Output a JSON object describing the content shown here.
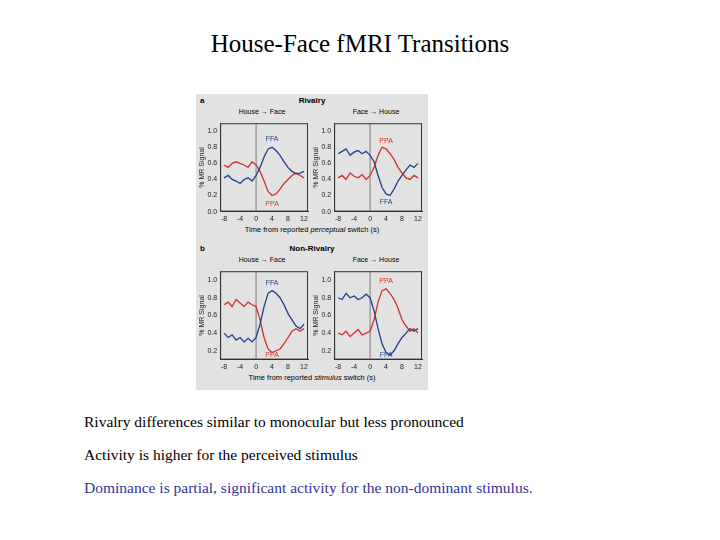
{
  "slide": {
    "title": "House-Face fMRI Transitions",
    "bullets": [
      {
        "text": "Rivalry differences similar to monocular but less pronounced",
        "color": "#000000"
      },
      {
        "text": "Activity is higher for the perceived stimulus",
        "color": "#000000"
      },
      {
        "text": "Dominance is partial, significant activity for the non-dominant stimulus.",
        "color": "#333399"
      }
    ]
  },
  "figure": {
    "panels": [
      {
        "letter": "a",
        "title": "Rivalry",
        "x_label": "Time from reported perceptual switch (s)",
        "emphasis": "perceptual"
      },
      {
        "letter": "b",
        "title": "Non-Rivalry",
        "x_label": "Time from reported stimulus switch (s)",
        "emphasis": "stimulus"
      }
    ]
  },
  "chart_data": [
    {
      "type": "line",
      "title": "House → Face",
      "y_label": "% MR Signal",
      "x": [
        -8,
        -7,
        -6,
        -5,
        -4,
        -3,
        -2,
        -1,
        0,
        1,
        2,
        3,
        4,
        5,
        6,
        7,
        8,
        9,
        10,
        11,
        12
      ],
      "series": [
        {
          "name": "FFA",
          "color": "#1f3f8f",
          "values": [
            0.42,
            0.45,
            0.4,
            0.38,
            0.35,
            0.4,
            0.42,
            0.38,
            0.45,
            0.55,
            0.68,
            0.78,
            0.8,
            0.76,
            0.7,
            0.62,
            0.55,
            0.5,
            0.47,
            0.48,
            0.5
          ]
        },
        {
          "name": "PPA",
          "color": "#d0312d",
          "values": [
            0.58,
            0.55,
            0.6,
            0.62,
            0.6,
            0.58,
            0.55,
            0.62,
            0.58,
            0.5,
            0.38,
            0.25,
            0.2,
            0.22,
            0.28,
            0.35,
            0.4,
            0.45,
            0.48,
            0.45,
            0.42
          ]
        }
      ],
      "xlim": [
        -9,
        13
      ],
      "xticks": [
        -8,
        -4,
        0,
        4,
        8,
        12
      ],
      "ylim": [
        0,
        1.1
      ],
      "yticks": [
        {
          "value": 0,
          "label": "0.0"
        },
        0.2,
        0.4,
        0.6,
        0.8,
        {
          "value": 1,
          "label": "1.0"
        }
      ],
      "switch_time": 0,
      "grid": false
    },
    {
      "type": "line",
      "title": "Face → House",
      "y_label": "% MR Signal",
      "x": [
        -8,
        -7,
        -6,
        -5,
        -4,
        -3,
        -2,
        -1,
        0,
        1,
        2,
        3,
        4,
        5,
        6,
        7,
        8,
        9,
        10,
        11,
        12
      ],
      "series": [
        {
          "name": "PPA",
          "color": "#d0312d",
          "values": [
            0.42,
            0.45,
            0.4,
            0.48,
            0.44,
            0.42,
            0.46,
            0.4,
            0.45,
            0.55,
            0.7,
            0.8,
            0.78,
            0.72,
            0.65,
            0.55,
            0.48,
            0.42,
            0.4,
            0.45,
            0.42
          ]
        },
        {
          "name": "FFA",
          "color": "#1f3f8f",
          "values": [
            0.72,
            0.75,
            0.78,
            0.7,
            0.74,
            0.76,
            0.72,
            0.75,
            0.7,
            0.62,
            0.45,
            0.3,
            0.22,
            0.2,
            0.28,
            0.38,
            0.45,
            0.52,
            0.58,
            0.55,
            0.6
          ]
        }
      ],
      "xlim": [
        -9,
        13
      ],
      "xticks": [
        -8,
        -4,
        0,
        4,
        8,
        12
      ],
      "ylim": [
        0,
        1.1
      ],
      "yticks": [
        {
          "value": 0,
          "label": "0.0"
        },
        0.2,
        0.4,
        0.6,
        0.8,
        {
          "value": 1,
          "label": "1.0"
        }
      ],
      "switch_time": 0,
      "grid": false
    },
    {
      "type": "line",
      "title": "House → Face",
      "y_label": "% MR Signal",
      "x": [
        -8,
        -7,
        -6,
        -5,
        -4,
        -3,
        -2,
        -1,
        0,
        1,
        2,
        3,
        4,
        5,
        6,
        7,
        8,
        9,
        10,
        11,
        12
      ],
      "series": [
        {
          "name": "FFA",
          "color": "#1f3f8f",
          "values": [
            0.4,
            0.35,
            0.38,
            0.32,
            0.35,
            0.3,
            0.34,
            0.3,
            0.35,
            0.5,
            0.7,
            0.85,
            0.88,
            0.85,
            0.8,
            0.72,
            0.62,
            0.55,
            0.48,
            0.45,
            0.5
          ]
        },
        {
          "name": "PPA",
          "color": "#d0312d",
          "values": [
            0.72,
            0.75,
            0.7,
            0.78,
            0.74,
            0.7,
            0.75,
            0.72,
            0.7,
            0.55,
            0.35,
            0.22,
            0.18,
            0.2,
            0.22,
            0.28,
            0.35,
            0.42,
            0.45,
            0.42,
            0.45
          ]
        }
      ],
      "xlim": [
        -9,
        13
      ],
      "xticks": [
        -8,
        -4,
        0,
        4,
        8,
        12
      ],
      "ylim": [
        0.1,
        1.1
      ],
      "yticks": [
        0.2,
        0.4,
        0.6,
        0.8,
        {
          "value": 1,
          "label": "1.0"
        }
      ],
      "switch_time": 0,
      "grid": false
    },
    {
      "type": "line",
      "title": "Face → House",
      "y_label": "% MR Signal",
      "x": [
        -8,
        -7,
        -6,
        -5,
        -4,
        -3,
        -2,
        -1,
        0,
        1,
        2,
        3,
        4,
        5,
        6,
        7,
        8,
        9,
        10,
        11,
        12
      ],
      "series": [
        {
          "name": "PPA",
          "color": "#d0312d",
          "values": [
            0.4,
            0.38,
            0.42,
            0.36,
            0.4,
            0.44,
            0.38,
            0.4,
            0.42,
            0.55,
            0.75,
            0.88,
            0.9,
            0.85,
            0.78,
            0.68,
            0.55,
            0.48,
            0.42,
            0.45,
            0.4
          ]
        },
        {
          "name": "FFA",
          "color": "#1f3f8f",
          "values": [
            0.8,
            0.78,
            0.85,
            0.8,
            0.82,
            0.78,
            0.8,
            0.84,
            0.8,
            0.65,
            0.45,
            0.28,
            0.18,
            0.15,
            0.2,
            0.28,
            0.35,
            0.4,
            0.45,
            0.42,
            0.45
          ]
        }
      ],
      "xlim": [
        -9,
        13
      ],
      "xticks": [
        -8,
        -4,
        0,
        4,
        8,
        12
      ],
      "ylim": [
        0.1,
        1.1
      ],
      "yticks": [
        0.2,
        0.4,
        0.6,
        0.8,
        {
          "value": 1,
          "label": "1.0"
        }
      ],
      "switch_time": 0,
      "grid": false
    }
  ]
}
